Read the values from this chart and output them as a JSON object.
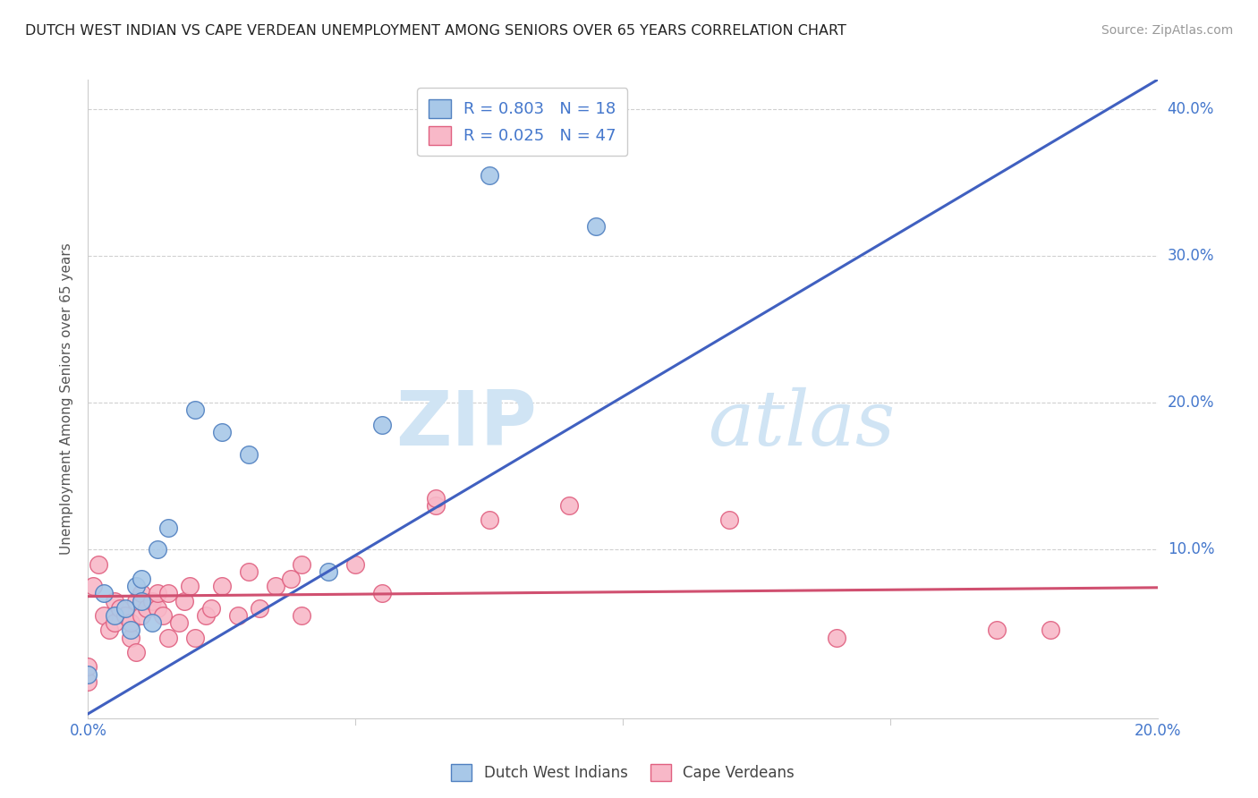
{
  "title": "DUTCH WEST INDIAN VS CAPE VERDEAN UNEMPLOYMENT AMONG SENIORS OVER 65 YEARS CORRELATION CHART",
  "source": "Source: ZipAtlas.com",
  "ylabel": "Unemployment Among Seniors over 65 years",
  "xlim": [
    0.0,
    0.2
  ],
  "ylim": [
    -0.015,
    0.42
  ],
  "ylim_display": [
    0.0,
    0.42
  ],
  "right_yticks": [
    0.1,
    0.2,
    0.3,
    0.4
  ],
  "right_yticklabels": [
    "10.0%",
    "20.0%",
    "30.0%",
    "40.0%"
  ],
  "grid_color": "#d0d0d0",
  "background_color": "#ffffff",
  "watermark_zip": "ZIP",
  "watermark_atlas": "atlas",
  "legend_r1": "R = 0.803",
  "legend_n1": "N = 18",
  "legend_r2": "R = 0.025",
  "legend_n2": "N = 47",
  "blue_color": "#a8c8e8",
  "blue_edge_color": "#5080c0",
  "blue_line_color": "#4060c0",
  "pink_color": "#f8b8c8",
  "pink_edge_color": "#e06080",
  "pink_line_color": "#d05070",
  "dutch_west_indian_x": [
    0.0,
    0.003,
    0.005,
    0.007,
    0.008,
    0.009,
    0.01,
    0.01,
    0.012,
    0.013,
    0.015,
    0.02,
    0.025,
    0.03,
    0.045,
    0.055,
    0.075,
    0.095
  ],
  "dutch_west_indian_y": [
    0.015,
    0.07,
    0.055,
    0.06,
    0.045,
    0.075,
    0.08,
    0.065,
    0.05,
    0.1,
    0.115,
    0.195,
    0.18,
    0.165,
    0.085,
    0.185,
    0.355,
    0.32
  ],
  "cape_verdean_x": [
    0.0,
    0.0,
    0.001,
    0.002,
    0.003,
    0.004,
    0.005,
    0.005,
    0.006,
    0.007,
    0.008,
    0.008,
    0.009,
    0.009,
    0.01,
    0.01,
    0.011,
    0.012,
    0.013,
    0.013,
    0.014,
    0.015,
    0.015,
    0.017,
    0.018,
    0.019,
    0.02,
    0.022,
    0.023,
    0.025,
    0.028,
    0.03,
    0.032,
    0.035,
    0.038,
    0.04,
    0.04,
    0.05,
    0.055,
    0.065,
    0.065,
    0.075,
    0.09,
    0.12,
    0.14,
    0.17,
    0.18
  ],
  "cape_verdean_y": [
    0.01,
    0.02,
    0.075,
    0.09,
    0.055,
    0.045,
    0.065,
    0.05,
    0.06,
    0.055,
    0.04,
    0.05,
    0.03,
    0.065,
    0.07,
    0.055,
    0.06,
    0.065,
    0.06,
    0.07,
    0.055,
    0.04,
    0.07,
    0.05,
    0.065,
    0.075,
    0.04,
    0.055,
    0.06,
    0.075,
    0.055,
    0.085,
    0.06,
    0.075,
    0.08,
    0.055,
    0.09,
    0.09,
    0.07,
    0.13,
    0.135,
    0.12,
    0.13,
    0.12,
    0.04,
    0.045,
    0.045
  ],
  "blue_line_x0": 0.0,
  "blue_line_y0": -0.012,
  "blue_line_x1": 0.2,
  "blue_line_y1": 0.42,
  "pink_line_x0": 0.0,
  "pink_line_y0": 0.068,
  "pink_line_x1": 0.2,
  "pink_line_y1": 0.074
}
